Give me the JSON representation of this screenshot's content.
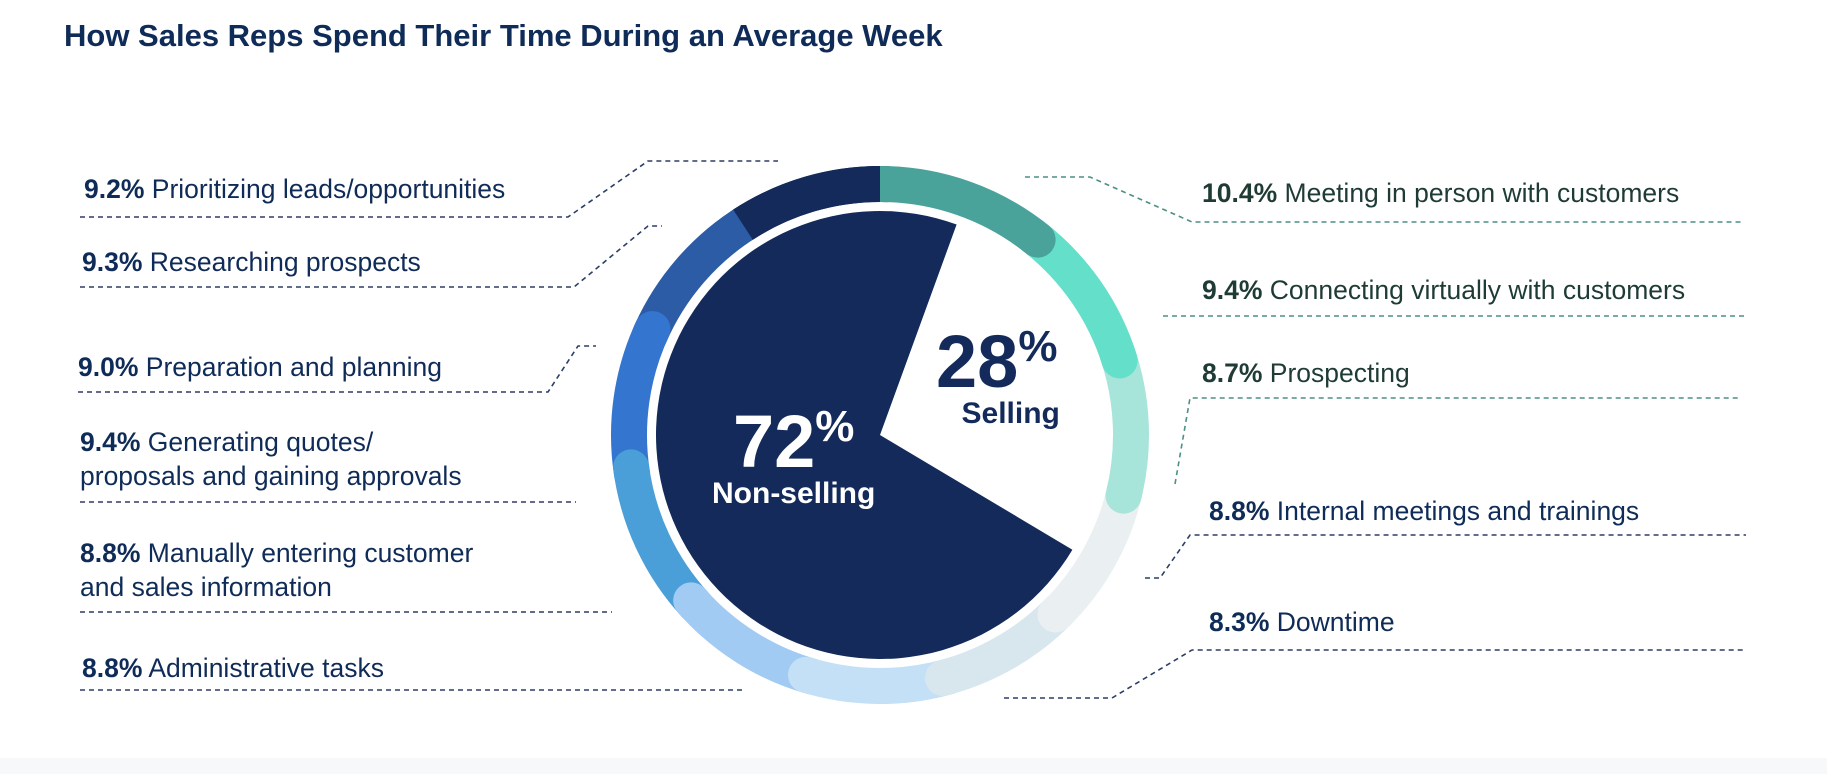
{
  "title": "How Sales Reps Spend Their Time During an Average Week",
  "chart_data": {
    "type": "pie",
    "title": "How Sales Reps Spend Their Time During an Average Week",
    "inner": [
      {
        "name": "Non-selling",
        "value": 72,
        "value_label": "72",
        "unit": "%",
        "color": "#132a5a"
      },
      {
        "name": "Selling",
        "value": 28,
        "value_label": "28",
        "unit": "%",
        "color": "#ffffff"
      }
    ],
    "outer_ring": [
      {
        "label": "Meeting in person with customers",
        "value": 10.4,
        "value_label": "10.4%",
        "color": "#4aa39a",
        "group": "Selling"
      },
      {
        "label": "Connecting virtually with customers",
        "value": 9.4,
        "value_label": "9.4%",
        "color": "#64dfca",
        "group": "Selling"
      },
      {
        "label": "Prospecting",
        "value": 8.7,
        "value_label": "8.7%",
        "color": "#a7e4da",
        "group": "Selling"
      },
      {
        "label": "Internal meetings and trainings",
        "value": 8.8,
        "value_label": "8.8%",
        "color": "#eaf0f2",
        "group": "Non-selling"
      },
      {
        "label": "Downtime",
        "value": 8.3,
        "value_label": "8.3%",
        "color": "#d8e6ee",
        "group": "Non-selling"
      },
      {
        "label": "Administrative tasks",
        "value": 8.8,
        "value_label": "8.8%",
        "color": "#c3e0f6",
        "group": "Non-selling"
      },
      {
        "label": "Manually entering customer and sales information",
        "label_lines": [
          "Manually entering customer",
          "and sales information"
        ],
        "value": 8.8,
        "value_label": "8.8%",
        "color": "#a2cbf4",
        "group": "Non-selling"
      },
      {
        "label": "Generating quotes/ proposals and gaining approvals",
        "label_lines": [
          "Generating quotes/",
          "proposals and gaining approvals"
        ],
        "value": 9.4,
        "value_label": "9.4%",
        "color": "#4a9fd9",
        "group": "Non-selling"
      },
      {
        "label": "Preparation and planning",
        "value": 9.0,
        "value_label": "9.0%",
        "color": "#3475cf",
        "group": "Non-selling"
      },
      {
        "label": "Researching prospects",
        "value": 9.3,
        "value_label": "9.3%",
        "color": "#2c5ca5",
        "group": "Non-selling"
      },
      {
        "label": "Prioritizing leads/opportunities",
        "value": 9.2,
        "value_label": "9.2%",
        "color": "#132a5a",
        "group": "Non-selling"
      }
    ]
  }
}
